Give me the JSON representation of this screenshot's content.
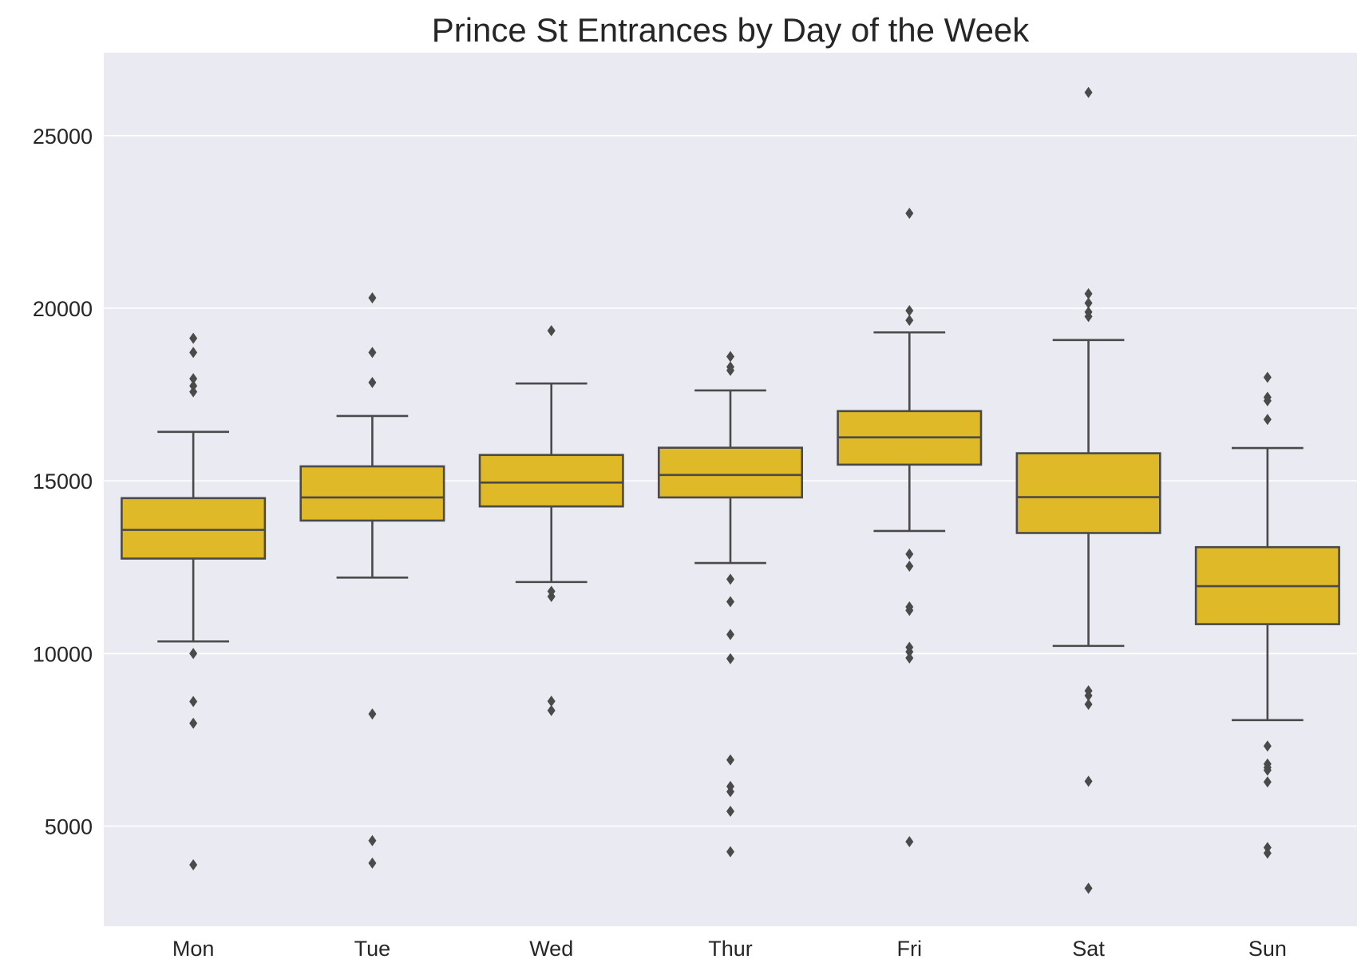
{
  "chart_data": {
    "type": "box",
    "title": "Prince St Entrances by Day of the Week",
    "xlabel": "",
    "ylabel": "",
    "ylim": [
      2100,
      27400
    ],
    "y_ticks": [
      5000,
      10000,
      15000,
      20000,
      25000
    ],
    "grid": "horizontal",
    "colors": {
      "box_fill": "#E0B929",
      "line": "#4A4A4A",
      "plot_bg": "#EAEAF2",
      "grid": "#FFFFFF"
    },
    "categories": [
      "Mon",
      "Tue",
      "Wed",
      "Thur",
      "Fri",
      "Sat",
      "Sun"
    ],
    "boxes": [
      {
        "category": "Mon",
        "whisker_low": 10350,
        "q1": 12750,
        "median": 13580,
        "q3": 14500,
        "whisker_high": 16420,
        "outliers": [
          19130,
          18720,
          17960,
          17750,
          17580,
          10000,
          8610,
          7980,
          3880
        ]
      },
      {
        "category": "Tue",
        "whisker_low": 12200,
        "q1": 13850,
        "median": 14520,
        "q3": 15420,
        "whisker_high": 16880,
        "outliers": [
          20300,
          18720,
          17850,
          8250,
          4580,
          3930
        ]
      },
      {
        "category": "Wed",
        "whisker_low": 12070,
        "q1": 14260,
        "median": 14950,
        "q3": 15750,
        "whisker_high": 17820,
        "outliers": [
          19350,
          11800,
          11650,
          8620,
          8350
        ]
      },
      {
        "category": "Thur",
        "whisker_low": 12620,
        "q1": 14520,
        "median": 15170,
        "q3": 15960,
        "whisker_high": 17620,
        "outliers": [
          18600,
          18300,
          18200,
          12150,
          11500,
          10550,
          9850,
          6920,
          6150,
          6000,
          5430,
          4260
        ]
      },
      {
        "category": "Fri",
        "whisker_low": 13550,
        "q1": 15470,
        "median": 16260,
        "q3": 17020,
        "whisker_high": 19300,
        "outliers": [
          22750,
          19930,
          19650,
          12880,
          12530,
          11350,
          11250,
          10180,
          10050,
          9870,
          4550
        ]
      },
      {
        "category": "Sat",
        "whisker_low": 10220,
        "q1": 13490,
        "median": 14530,
        "q3": 15800,
        "whisker_high": 19080,
        "outliers": [
          26250,
          20420,
          20150,
          19890,
          19760,
          8920,
          8780,
          8530,
          6300,
          3200
        ]
      },
      {
        "category": "Sun",
        "whisker_low": 8070,
        "q1": 10850,
        "median": 11950,
        "q3": 13080,
        "whisker_high": 15950,
        "outliers": [
          18000,
          17420,
          17320,
          16780,
          7320,
          6800,
          6700,
          6620,
          6280,
          4380,
          4220
        ]
      }
    ]
  }
}
